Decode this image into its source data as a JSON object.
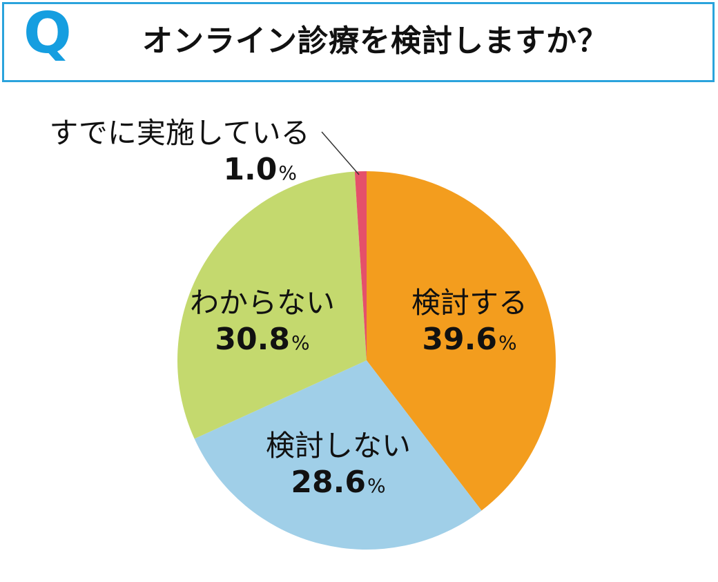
{
  "header": {
    "q_mark": "Q",
    "question": "オンライン診療を検討しますか？"
  },
  "chart_data": {
    "type": "pie",
    "start_angle_deg": 0,
    "direction": "clockwise",
    "slices": [
      {
        "label": "検討する",
        "value": 39.6,
        "display": "39.6",
        "unit": "%",
        "color": "#f39d1e"
      },
      {
        "label": "検討しない",
        "value": 28.6,
        "display": "28.6",
        "unit": "%",
        "color": "#a0cfe8"
      },
      {
        "label": "わからない",
        "value": 30.8,
        "display": "30.8",
        "unit": "%",
        "color": "#c4d96e"
      },
      {
        "label": "すでに実施している",
        "value": 1.0,
        "display": "1.0",
        "unit": "%",
        "color": "#e5506a"
      }
    ]
  }
}
